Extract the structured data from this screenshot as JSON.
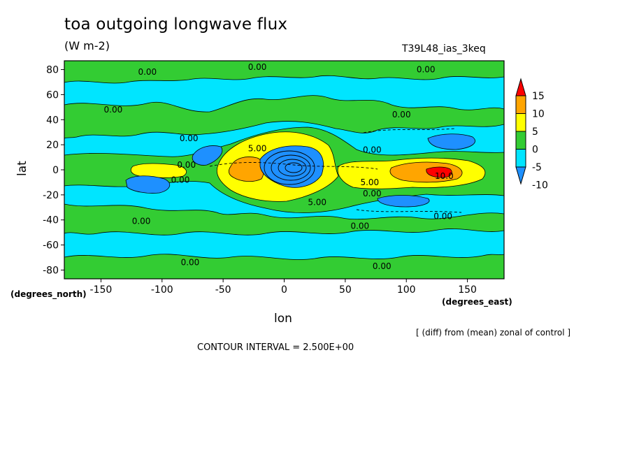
{
  "header": {
    "title": "toa outgoing longwave flux",
    "units": "(W m-2)",
    "dataset": "T39L48_ias_3keq"
  },
  "footer": {
    "note": "[ (diff) from (mean) zonal of control ]",
    "contour_interval": "CONTOUR INTERVAL = 2.500E+00"
  },
  "chart_data": {
    "type": "heatmap",
    "title": "toa outgoing longwave flux",
    "subtitle": "(W m-2)",
    "xlabel": "lon",
    "ylabel": "lat",
    "x_units": "(degrees_east)",
    "y_units": "(degrees_north)",
    "xlim": [
      -180,
      180
    ],
    "ylim": [
      -87,
      87
    ],
    "x_ticks": [
      -150,
      -100,
      -50,
      0,
      50,
      100,
      150
    ],
    "x_tick_labels": [
      "-150",
      "-100",
      "-50",
      "0",
      "50",
      "100",
      "150"
    ],
    "y_ticks": [
      80,
      60,
      40,
      20,
      0,
      -20,
      -40,
      -60,
      -80
    ],
    "y_tick_labels": [
      "80",
      "60",
      "40",
      "20",
      "0",
      "-20",
      "-40",
      "-60",
      "-80"
    ],
    "contour_interval": 2.5,
    "colorbar": {
      "labels": [
        "15",
        "10",
        "5",
        "0",
        "-5",
        "-10"
      ],
      "levels": [
        -10,
        -5,
        0,
        5,
        10,
        15
      ],
      "colors": [
        "#1e90ff",
        "#00e5ff",
        "#33cc33",
        "#ffff00",
        "#ffa500",
        "#ff0000"
      ]
    },
    "contour_labels": [
      {
        "text": "0.00",
        "lon": -112,
        "lat": 78
      },
      {
        "text": "0.00",
        "lon": -22,
        "lat": 82
      },
      {
        "text": "0.00",
        "lon": 116,
        "lat": 80
      },
      {
        "text": "0.00",
        "lon": -140,
        "lat": 48
      },
      {
        "text": "0.00",
        "lon": 96,
        "lat": 44
      },
      {
        "text": "0.00",
        "lon": -78,
        "lat": 25
      },
      {
        "text": "5.00",
        "lon": -22,
        "lat": 17
      },
      {
        "text": "0.00",
        "lon": 72,
        "lat": 16
      },
      {
        "text": "0.00",
        "lon": -80,
        "lat": 4
      },
      {
        "text": "0.00",
        "lon": -85,
        "lat": -8
      },
      {
        "text": "10.0",
        "lon": 131,
        "lat": -5
      },
      {
        "text": "5.00",
        "lon": 70,
        "lat": -10
      },
      {
        "text": "0.00",
        "lon": 72,
        "lat": -19
      },
      {
        "text": "5.00",
        "lon": 27,
        "lat": -26
      },
      {
        "text": "0.00",
        "lon": -117,
        "lat": -41
      },
      {
        "text": "0.00",
        "lon": 130,
        "lat": -37
      },
      {
        "text": "0.00",
        "lon": 62,
        "lat": -45
      },
      {
        "text": "0.00",
        "lon": -77,
        "lat": -74
      },
      {
        "text": "0.00",
        "lon": 80,
        "lat": -77
      }
    ]
  }
}
